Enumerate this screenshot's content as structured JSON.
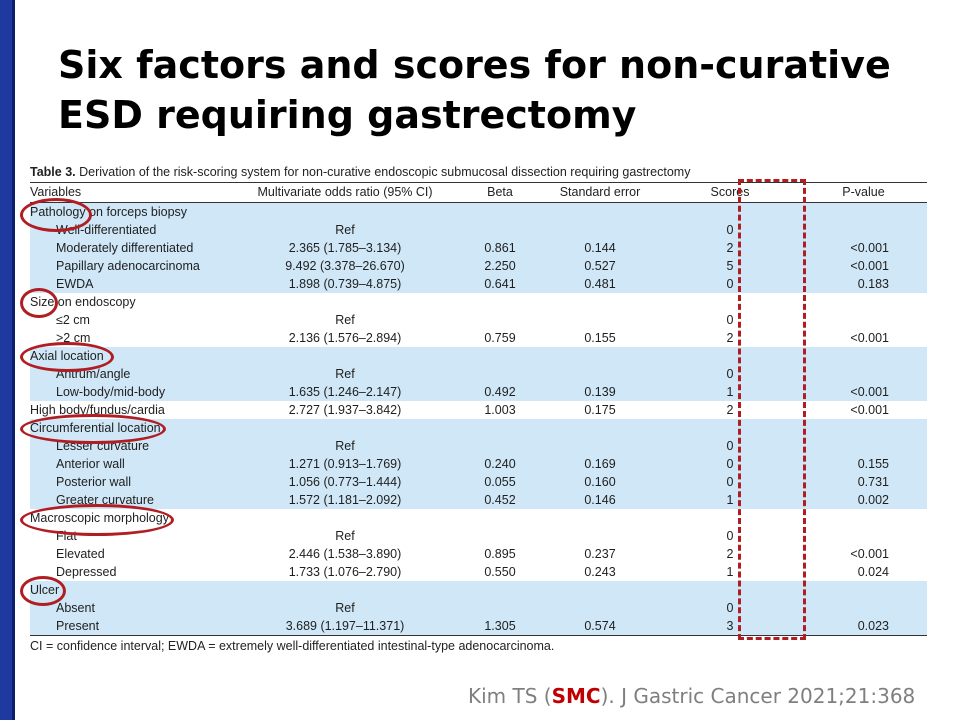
{
  "slide": {
    "title_line1": "Six factors and scores for non-curative",
    "title_line2": "ESD requiring gastrectomy"
  },
  "table": {
    "caption_label": "Table 3.",
    "caption_text": " Derivation of the risk-scoring system for non-curative endoscopic submucosal dissection requiring gastrectomy",
    "headers": {
      "variables": "Variables",
      "odds": "Multivariate odds ratio (95% CI)",
      "beta": "Beta",
      "se": "Standard error",
      "scores": "Scores",
      "pvalue": "P-value"
    },
    "rows": [
      {
        "label": "Pathology on forceps biopsy",
        "or": "",
        "beta": "",
        "se": "",
        "score": "",
        "p": ""
      },
      {
        "label": "Well-differentiated",
        "or": "Ref",
        "beta": "",
        "se": "",
        "score": "0",
        "p": ""
      },
      {
        "label": "Moderately differentiated",
        "or": "2.365 (1.785–3.134)",
        "beta": "0.861",
        "se": "0.144",
        "score": "2",
        "p": "<0.001"
      },
      {
        "label": "Papillary adenocarcinoma",
        "or": "9.492 (3.378–26.670)",
        "beta": "2.250",
        "se": "0.527",
        "score": "5",
        "p": "<0.001"
      },
      {
        "label": "EWDA",
        "or": "1.898 (0.739–4.875)",
        "beta": "0.641",
        "se": "0.481",
        "score": "0",
        "p": "0.183"
      },
      {
        "label": "Size on endoscopy",
        "or": "",
        "beta": "",
        "se": "",
        "score": "",
        "p": ""
      },
      {
        "label": "≤2 cm",
        "or": "Ref",
        "beta": "",
        "se": "",
        "score": "0",
        "p": ""
      },
      {
        "label": ">2 cm",
        "or": "2.136 (1.576–2.894)",
        "beta": "0.759",
        "se": "0.155",
        "score": "2",
        "p": "<0.001"
      },
      {
        "label": "Axial location",
        "or": "",
        "beta": "",
        "se": "",
        "score": "",
        "p": ""
      },
      {
        "label": "Antrum/angle",
        "or": "Ref",
        "beta": "",
        "se": "",
        "score": "0",
        "p": ""
      },
      {
        "label": "Low-body/mid-body",
        "or": "1.635 (1.246–2.147)",
        "beta": "0.492",
        "se": "0.139",
        "score": "1",
        "p": "<0.001"
      },
      {
        "label": "High body/fundus/cardia",
        "or": "2.727 (1.937–3.842)",
        "beta": "1.003",
        "se": "0.175",
        "score": "2",
        "p": "<0.001"
      },
      {
        "label": "Circumferential location",
        "or": "",
        "beta": "",
        "se": "",
        "score": "",
        "p": ""
      },
      {
        "label": "Lesser curvature",
        "or": "Ref",
        "beta": "",
        "se": "",
        "score": "0",
        "p": ""
      },
      {
        "label": "Anterior wall",
        "or": "1.271 (0.913–1.769)",
        "beta": "0.240",
        "se": "0.169",
        "score": "0",
        "p": "0.155"
      },
      {
        "label": "Posterior wall",
        "or": "1.056 (0.773–1.444)",
        "beta": "0.055",
        "se": "0.160",
        "score": "0",
        "p": "0.731"
      },
      {
        "label": "Greater curvature",
        "or": "1.572 (1.181–2.092)",
        "beta": "0.452",
        "se": "0.146",
        "score": "1",
        "p": "0.002"
      },
      {
        "label": "Macroscopic morphology",
        "or": "",
        "beta": "",
        "se": "",
        "score": "",
        "p": ""
      },
      {
        "label": "Flat",
        "or": "Ref",
        "beta": "",
        "se": "",
        "score": "0",
        "p": ""
      },
      {
        "label": "Elevated",
        "or": "2.446 (1.538–3.890)",
        "beta": "0.895",
        "se": "0.237",
        "score": "2",
        "p": "<0.001"
      },
      {
        "label": "Depressed",
        "or": "1.733 (1.076–2.790)",
        "beta": "0.550",
        "se": "0.243",
        "score": "1",
        "p": "0.024"
      },
      {
        "label": "Ulcer",
        "or": "",
        "beta": "",
        "se": "",
        "score": "",
        "p": ""
      },
      {
        "label": "Absent",
        "or": "Ref",
        "beta": "",
        "se": "",
        "score": "0",
        "p": ""
      },
      {
        "label": "Present",
        "or": "3.689 (1.197–11.371)",
        "beta": "1.305",
        "se": "0.574",
        "score": "3",
        "p": "0.023"
      }
    ],
    "footnote": "CI = confidence interval; EWDA = extremely well-differentiated intestinal-type adenocarcinoma."
  },
  "citation": {
    "prefix": "Kim TS (",
    "org": "SMC",
    "suffix": "). J Gastric Cancer 2021;21:368"
  },
  "colors": {
    "highlight": "#b01e23",
    "row_shade": "#cfe7f6",
    "left_bar": "#1e3a9e"
  }
}
